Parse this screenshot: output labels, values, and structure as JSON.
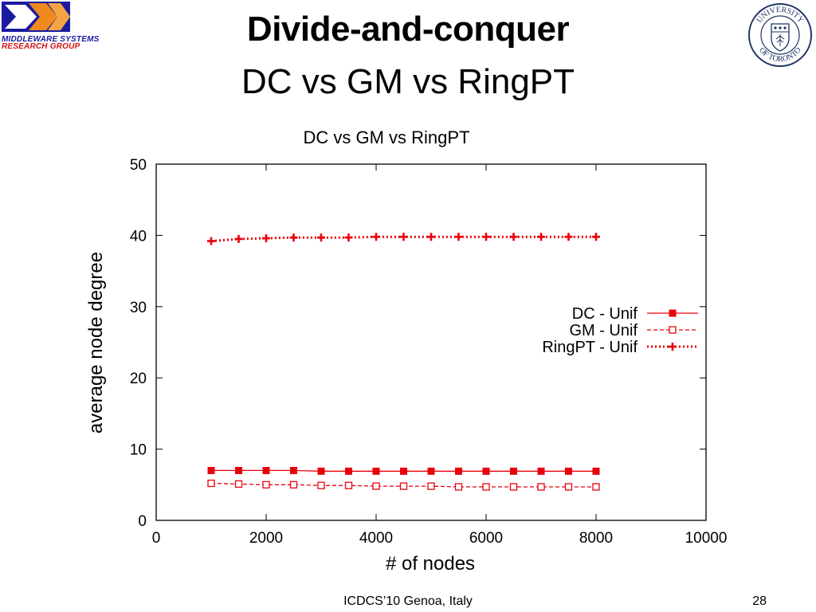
{
  "header": {
    "logo": {
      "line1": "MIDDLEWARE SYSTEMS",
      "line2": "RESEARCH GROUP",
      "colors": {
        "blue": "#1a1aa0",
        "orange": "#f08a1e",
        "red": "#d21414"
      }
    },
    "title": "Divide-and-conquer",
    "subtitle": "DC vs GM vs RingPT",
    "seal": {
      "top_text": "UNIVERSITY",
      "bottom_text": "OF TORONTO",
      "color": "#1f3566"
    }
  },
  "chart_data": {
    "type": "line",
    "title": "DC vs GM vs RingPT",
    "xlabel": "# of nodes",
    "ylabel": "average node degree",
    "xlim": [
      0,
      10000
    ],
    "ylim": [
      0,
      50
    ],
    "xticks": [
      0,
      2000,
      4000,
      6000,
      8000,
      10000
    ],
    "yticks": [
      0,
      10,
      20,
      30,
      40,
      50
    ],
    "grid": false,
    "legend_position": "right-middle",
    "x": [
      1000,
      1500,
      2000,
      2500,
      3000,
      3500,
      4000,
      4500,
      5000,
      5500,
      6000,
      6500,
      7000,
      7500,
      8000
    ],
    "series": [
      {
        "name": "DC - Unif",
        "color": "#e8000b",
        "line": "solid",
        "marker": "filled-square",
        "values": [
          7.0,
          7.0,
          7.0,
          7.0,
          6.9,
          6.9,
          6.9,
          6.9,
          6.9,
          6.9,
          6.9,
          6.9,
          6.9,
          6.9,
          6.9
        ]
      },
      {
        "name": "GM - Unif",
        "color": "#e8000b",
        "line": "dashed",
        "marker": "open-square",
        "values": [
          5.2,
          5.1,
          5.0,
          5.0,
          4.9,
          4.9,
          4.8,
          4.8,
          4.8,
          4.7,
          4.7,
          4.7,
          4.7,
          4.7,
          4.7
        ]
      },
      {
        "name": "RingPT - Unif",
        "color": "#e8000b",
        "line": "dotted",
        "marker": "plus",
        "values": [
          39.2,
          39.5,
          39.6,
          39.7,
          39.7,
          39.7,
          39.8,
          39.8,
          39.8,
          39.8,
          39.8,
          39.8,
          39.8,
          39.8,
          39.8
        ]
      }
    ]
  },
  "footer": {
    "venue": "ICDCS’10 Genoa, Italy",
    "page_number": "28"
  }
}
